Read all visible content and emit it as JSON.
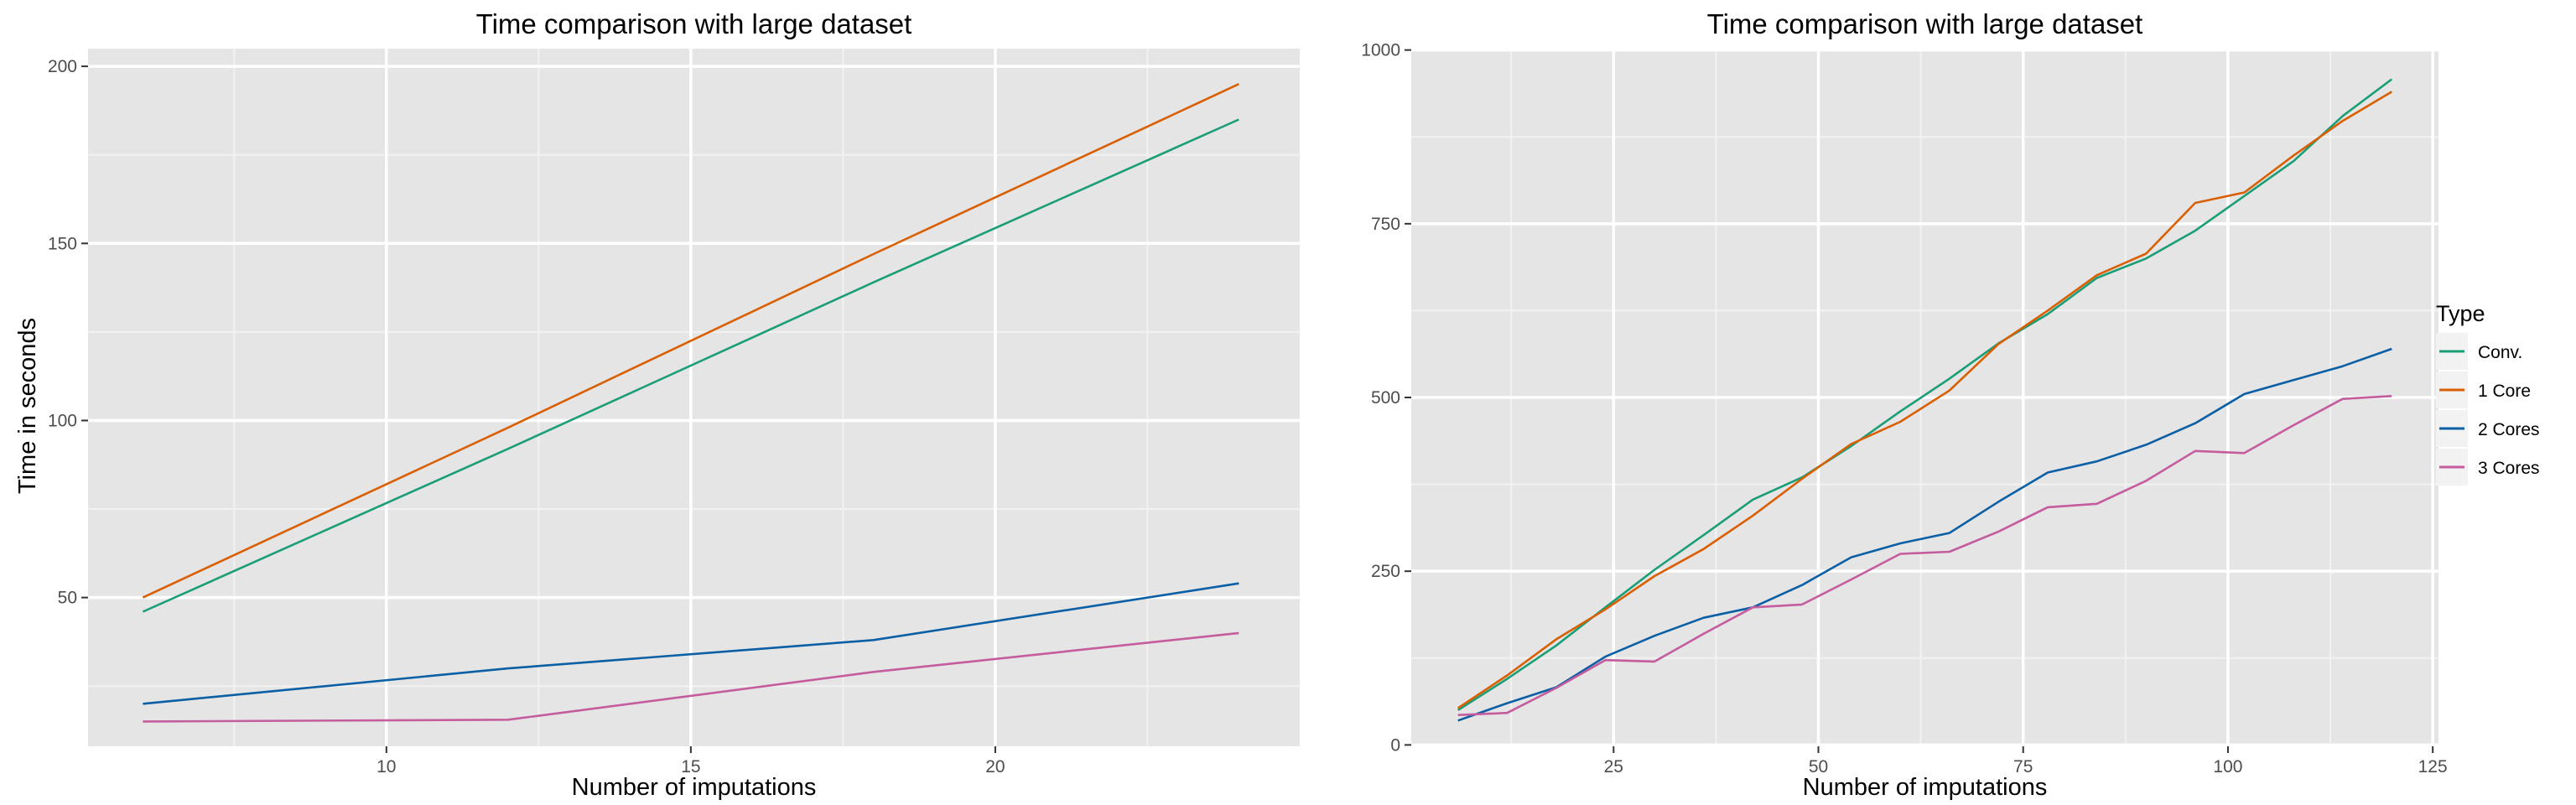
{
  "colors": {
    "panel_bg": "#e5e5e5",
    "grid_major": "#ffffff",
    "grid_minor": "#f2f2f2",
    "series": [
      "#1b9e77",
      "#d95f02",
      "#0b5fa5",
      "#c45c9e"
    ]
  },
  "legend": {
    "title": "Type",
    "items": [
      "Conv.",
      "1 Core",
      "2 Cores",
      "3 Cores"
    ]
  },
  "chart_data": [
    {
      "type": "line",
      "title": "Time comparison with large dataset",
      "xlabel": "Number of imputations",
      "ylabel": "Time in seconds",
      "xlim": [
        5.1,
        25.0
      ],
      "ylim": [
        8.0,
        205.0
      ],
      "xticks": [
        10,
        15,
        20
      ],
      "yticks": [
        50,
        100,
        150,
        200
      ],
      "x": [
        6,
        12,
        18,
        24
      ],
      "series": [
        {
          "name": "Conv.",
          "values": [
            46,
            92,
            139,
            185
          ]
        },
        {
          "name": "1 Core",
          "values": [
            50,
            98,
            147,
            195
          ]
        },
        {
          "name": "2 Cores",
          "values": [
            20,
            30,
            38,
            54
          ]
        },
        {
          "name": "3 Cores",
          "values": [
            15,
            15.5,
            29,
            40
          ]
        }
      ]
    },
    {
      "type": "line",
      "title": "Time comparison with large dataset",
      "xlabel": "Number of imputations",
      "ylabel": "",
      "xlim": [
        0.3,
        125.7
      ],
      "ylim": [
        -2,
        1002
      ],
      "xticks": [
        25,
        50,
        75,
        100,
        125
      ],
      "yticks": [
        0,
        250,
        500,
        750,
        1000
      ],
      "x": [
        6,
        12,
        18,
        24,
        30,
        36,
        42,
        48,
        54,
        60,
        66,
        72,
        78,
        84,
        90,
        96,
        102,
        108,
        114,
        120
      ],
      "series": [
        {
          "name": "Conv.",
          "values": [
            50,
            95,
            143,
            198,
            252,
            302,
            353,
            385,
            430,
            480,
            527,
            578,
            620,
            672,
            700,
            740,
            790,
            840,
            905,
            958
          ]
        },
        {
          "name": "1 Core",
          "values": [
            53,
            100,
            152,
            195,
            243,
            282,
            330,
            383,
            433,
            465,
            510,
            577,
            625,
            676,
            707,
            780,
            795,
            848,
            898,
            940
          ]
        },
        {
          "name": "2 Cores",
          "values": [
            35,
            60,
            83,
            127,
            157,
            183,
            198,
            230,
            270,
            290,
            305,
            350,
            392,
            408,
            432,
            463,
            505,
            525,
            545,
            570
          ]
        },
        {
          "name": "3 Cores",
          "values": [
            43,
            46,
            82,
            122,
            120,
            160,
            198,
            202,
            238,
            275,
            278,
            307,
            342,
            347,
            380,
            423,
            420,
            460,
            498,
            502
          ]
        }
      ]
    }
  ]
}
